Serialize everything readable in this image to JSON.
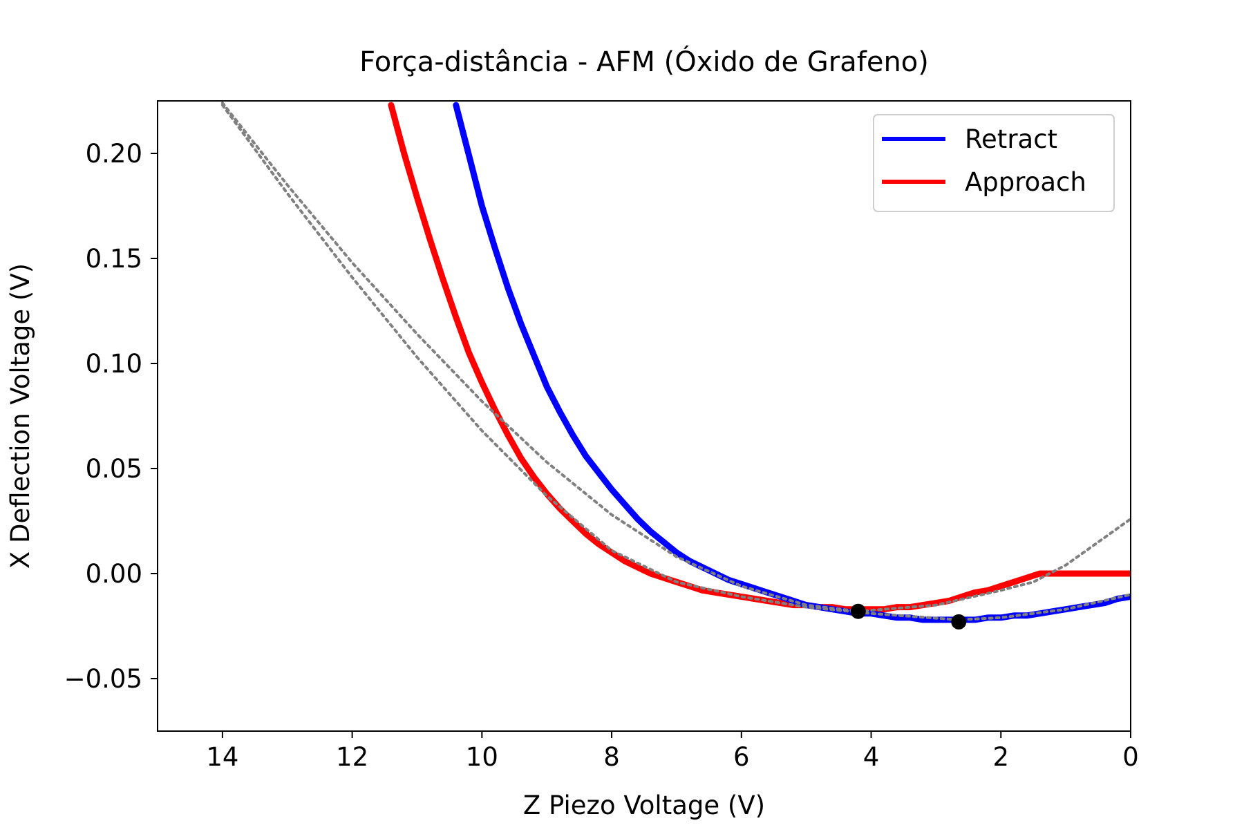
{
  "chart_data": {
    "type": "line",
    "title": "Força-distância - AFM (Óxido de Grafeno)",
    "xlabel": "Z Piezo Voltage (V)",
    "ylabel": "X Deflection Voltage (V)",
    "xlim": [
      15,
      0
    ],
    "ylim": [
      -0.075,
      0.225
    ],
    "x_ticks": [
      14,
      12,
      10,
      8,
      6,
      4,
      2,
      0
    ],
    "x_tick_labels": [
      "14",
      "12",
      "10",
      "8",
      "6",
      "4",
      "2",
      "0"
    ],
    "y_ticks": [
      0.2,
      0.15,
      0.1,
      0.05,
      0.0,
      -0.05
    ],
    "y_tick_labels": [
      "0.20",
      "0.15",
      "0.10",
      "0.05",
      "0.00",
      "−0.05"
    ],
    "grid": false,
    "legend_position": "top-right",
    "series": [
      {
        "name": "Retract",
        "color": "#0000ff",
        "x": [
          10.4,
          10.2,
          10.0,
          9.8,
          9.6,
          9.4,
          9.2,
          9.0,
          8.8,
          8.6,
          8.4,
          8.2,
          8.0,
          7.8,
          7.6,
          7.4,
          7.2,
          7.0,
          6.8,
          6.6,
          6.4,
          6.2,
          6.0,
          5.8,
          5.6,
          5.4,
          5.2,
          5.0,
          4.8,
          4.6,
          4.4,
          4.2,
          4.0,
          3.8,
          3.6,
          3.4,
          3.2,
          3.0,
          2.8,
          2.65,
          2.4,
          2.2,
          2.0,
          1.8,
          1.6,
          1.4,
          1.2,
          1.0,
          0.8,
          0.6,
          0.4,
          0.2,
          0.0
        ],
        "y": [
          0.223,
          0.199,
          0.175,
          0.155,
          0.136,
          0.119,
          0.104,
          0.089,
          0.077,
          0.066,
          0.056,
          0.048,
          0.04,
          0.033,
          0.026,
          0.02,
          0.015,
          0.01,
          0.006,
          0.003,
          0.0,
          -0.003,
          -0.005,
          -0.007,
          -0.009,
          -0.011,
          -0.013,
          -0.015,
          -0.016,
          -0.017,
          -0.018,
          -0.019,
          -0.019,
          -0.02,
          -0.021,
          -0.021,
          -0.022,
          -0.022,
          -0.022,
          -0.022,
          -0.022,
          -0.021,
          -0.021,
          -0.02,
          -0.02,
          -0.019,
          -0.018,
          -0.017,
          -0.016,
          -0.015,
          -0.014,
          -0.012,
          -0.011
        ]
      },
      {
        "name": "Approach",
        "color": "#ff0000",
        "x": [
          11.4,
          11.2,
          11.0,
          10.8,
          10.6,
          10.4,
          10.2,
          10.0,
          9.8,
          9.6,
          9.4,
          9.2,
          9.0,
          8.8,
          8.6,
          8.4,
          8.2,
          8.0,
          7.8,
          7.6,
          7.4,
          7.2,
          7.0,
          6.8,
          6.6,
          6.4,
          6.2,
          6.0,
          5.8,
          5.6,
          5.4,
          5.2,
          5.0,
          4.8,
          4.6,
          4.4,
          4.2,
          4.0,
          3.8,
          3.6,
          3.4,
          3.2,
          3.0,
          2.8,
          2.6,
          2.4,
          2.2,
          2.0,
          1.8,
          1.6,
          1.4,
          1.2,
          1.0,
          0.8,
          0.6,
          0.4,
          0.2,
          0.0
        ],
        "y": [
          0.223,
          0.2,
          0.179,
          0.159,
          0.14,
          0.122,
          0.105,
          0.091,
          0.078,
          0.066,
          0.055,
          0.046,
          0.038,
          0.031,
          0.025,
          0.019,
          0.014,
          0.01,
          0.006,
          0.003,
          0.0,
          -0.002,
          -0.004,
          -0.006,
          -0.008,
          -0.009,
          -0.01,
          -0.011,
          -0.012,
          -0.013,
          -0.014,
          -0.015,
          -0.015,
          -0.016,
          -0.016,
          -0.017,
          -0.017,
          -0.017,
          -0.017,
          -0.016,
          -0.016,
          -0.015,
          -0.014,
          -0.013,
          -0.011,
          -0.009,
          -0.008,
          -0.006,
          -0.004,
          -0.002,
          0.0,
          0.0,
          0.0,
          0.0,
          0.0,
          0.0,
          0.0,
          0.0
        ]
      }
    ],
    "fit_curves": [
      {
        "color": "#808080",
        "style": "dotted",
        "x": [
          14.0,
          13.0,
          12.0,
          11.0,
          10.0,
          9.0,
          8.0,
          7.0,
          6.0,
          5.0,
          4.2,
          3.0,
          2.0,
          1.5,
          1.0,
          0.5,
          0.0
        ],
        "y": [
          0.224,
          0.185,
          0.148,
          0.114,
          0.082,
          0.053,
          0.028,
          0.008,
          -0.006,
          -0.015,
          -0.018,
          -0.015,
          -0.008,
          -0.004,
          0.004,
          0.015,
          0.026
        ]
      },
      {
        "color": "#808080",
        "style": "dotted",
        "x": [
          14.0,
          13.0,
          12.0,
          11.0,
          10.0,
          9.0,
          8.0,
          7.0,
          6.0,
          5.0,
          4.0,
          2.65,
          2.0,
          1.0,
          0.0
        ],
        "y": [
          0.223,
          0.181,
          0.141,
          0.103,
          0.068,
          0.037,
          0.011,
          -0.004,
          -0.011,
          -0.016,
          -0.019,
          -0.022,
          -0.021,
          -0.017,
          -0.01
        ]
      }
    ],
    "markers": [
      {
        "x": 4.2,
        "y": -0.018,
        "color": "#000000"
      },
      {
        "x": 2.65,
        "y": -0.023,
        "color": "#000000"
      }
    ]
  }
}
